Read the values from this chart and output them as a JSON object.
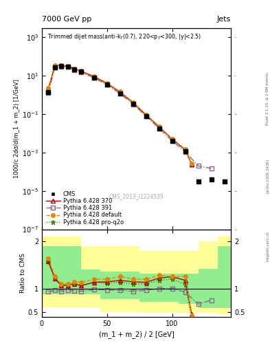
{
  "title_left": "7000 GeV pp",
  "title_right": "Jets",
  "annotation": "Trimmed dijet mass(anti-k$_T$(0.7), 220<p$_T$<300, |y|<2.5)",
  "watermark": "CMS_2013_I1224539",
  "ylabel_main": "1000/c 2dσ/d(m_1 + m_2) [1/GeV]",
  "ylabel_ratio": "Ratio to CMS",
  "xlabel": "(m_1 + m_2) / 2 [GeV]",
  "ylim_main": [
    1e-07,
    3000.0
  ],
  "ylim_ratio": [
    0.4,
    2.25
  ],
  "xlim": [
    0,
    145
  ],
  "cms_x": [
    5,
    10,
    15,
    20,
    25,
    30,
    40,
    50,
    60,
    70,
    80,
    90,
    100,
    110,
    120,
    130,
    140
  ],
  "cms_y": [
    1.4,
    28,
    32,
    30,
    21,
    16,
    8,
    3.5,
    1.2,
    0.35,
    0.08,
    0.018,
    0.004,
    0.0012,
    3e-05,
    4e-05,
    3e-05
  ],
  "py370_x": [
    5,
    10,
    15,
    20,
    25,
    30,
    40,
    50,
    60,
    70,
    80,
    90,
    100,
    110,
    115
  ],
  "py370_y": [
    2.2,
    34,
    34,
    32,
    23,
    17,
    9,
    4.0,
    1.4,
    0.4,
    0.09,
    0.022,
    0.005,
    0.0014,
    0.00025
  ],
  "py391_x": [
    5,
    10,
    15,
    20,
    25,
    30,
    40,
    50,
    60,
    70,
    80,
    90,
    100,
    110,
    120,
    130
  ],
  "py391_y": [
    1.3,
    27,
    30,
    29,
    20,
    15,
    7.8,
    3.4,
    1.15,
    0.33,
    0.077,
    0.018,
    0.004,
    0.0011,
    0.0002,
    0.00015
  ],
  "pydef_x": [
    5,
    10,
    15,
    20,
    25,
    30,
    40,
    50,
    60,
    70,
    80,
    90,
    100,
    110,
    115
  ],
  "pydef_y": [
    2.3,
    35,
    35,
    33,
    24,
    18,
    9.5,
    4.2,
    1.5,
    0.42,
    0.095,
    0.023,
    0.005,
    0.0015,
    0.00026
  ],
  "pyq2o_x": [
    5,
    10,
    15,
    20,
    25,
    30,
    40,
    50,
    60,
    70,
    80,
    90,
    100,
    110,
    115
  ],
  "pyq2o_y": [
    2.2,
    34,
    34,
    32,
    23,
    17,
    9.0,
    3.9,
    1.35,
    0.38,
    0.088,
    0.021,
    0.0048,
    0.0013,
    0.00022
  ],
  "ratio_py370_x": [
    5,
    10,
    15,
    20,
    25,
    30,
    40,
    50,
    60,
    70,
    80,
    90,
    100,
    110,
    115
  ],
  "ratio_py370_y": [
    1.57,
    1.21,
    1.06,
    1.07,
    1.1,
    1.06,
    1.13,
    1.14,
    1.17,
    1.14,
    1.13,
    1.22,
    1.25,
    1.17,
    0.45
  ],
  "ratio_py391_x": [
    5,
    10,
    15,
    20,
    25,
    30,
    40,
    50,
    60,
    70,
    80,
    90,
    100,
    110,
    120,
    130
  ],
  "ratio_py391_y": [
    0.93,
    0.96,
    0.94,
    0.97,
    0.95,
    0.94,
    0.975,
    0.97,
    0.96,
    0.94,
    0.96,
    1.0,
    1.0,
    0.92,
    0.67,
    0.75
  ],
  "ratio_pydef_x": [
    5,
    10,
    15,
    20,
    25,
    30,
    40,
    50,
    60,
    70,
    80,
    90,
    100,
    110,
    115
  ],
  "ratio_pydef_y": [
    1.64,
    1.25,
    1.09,
    1.1,
    1.14,
    1.13,
    1.19,
    1.2,
    1.25,
    1.2,
    1.19,
    1.28,
    1.25,
    1.25,
    0.43
  ],
  "ratio_pyq2o_x": [
    5,
    10,
    15,
    20,
    25,
    30,
    40,
    50,
    60,
    70,
    80,
    90,
    100,
    110,
    115
  ],
  "ratio_pyq2o_y": [
    1.57,
    1.21,
    1.06,
    1.07,
    1.1,
    1.06,
    1.13,
    1.11,
    1.13,
    1.09,
    1.1,
    1.17,
    1.2,
    1.08,
    0.35
  ],
  "band_edges": [
    0,
    15,
    30,
    45,
    75,
    105,
    120,
    135,
    145
  ],
  "band_inner_lo": [
    0.88,
    0.88,
    0.88,
    0.78,
    0.72,
    0.68,
    0.58,
    0.58,
    0.58
  ],
  "band_inner_hi": [
    1.9,
    1.9,
    1.4,
    1.35,
    1.32,
    1.32,
    1.42,
    1.9,
    1.9
  ],
  "band_outer_lo": [
    0.6,
    0.6,
    0.6,
    0.5,
    0.48,
    0.48,
    0.48,
    0.45,
    0.45
  ],
  "band_outer_hi": [
    2.1,
    2.1,
    1.9,
    1.9,
    1.8,
    1.8,
    2.0,
    2.1,
    2.1
  ],
  "color_cms": "#000000",
  "color_py370": "#aa0000",
  "color_py391": "#886688",
  "color_pydef": "#dd8800",
  "color_pyq2o": "#448800",
  "color_band_inner": "#90ee90",
  "color_band_outer": "#ffff99",
  "side_label_top": "Rivet 3.1.10, ≥ 2.6M events",
  "side_label_bot": "[arXiv:1306.3436]",
  "mcplots_label": "mcplots.cern.ch"
}
